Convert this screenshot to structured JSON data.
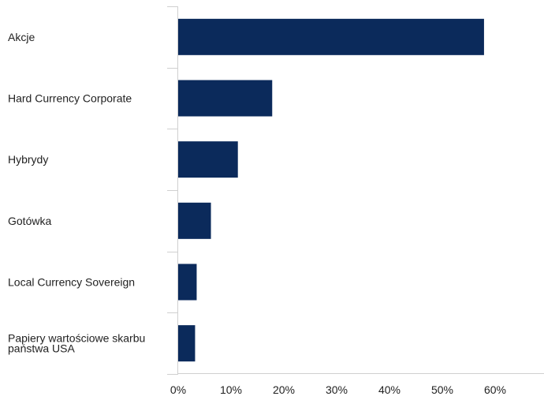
{
  "chart_data": {
    "type": "bar",
    "orientation": "horizontal",
    "title": "",
    "xlabel": "",
    "ylabel": "",
    "categories": [
      "Akcje",
      "Hard Currency Corporate",
      "Hybrydy",
      "Gotówka",
      "Local Currency Sovereign",
      "Papiery wartościowe skarbu państwa USA"
    ],
    "category_lines": [
      [
        "Akcje"
      ],
      [
        "Hard Currency Corporate"
      ],
      [
        "Hybrydy"
      ],
      [
        "Gotówka"
      ],
      [
        "Local Currency Sovereign"
      ],
      [
        "Papiery wartościowe skarbu",
        "państwa USA"
      ]
    ],
    "values": [
      57.9,
      17.8,
      11.3,
      6.2,
      3.5,
      3.2
    ],
    "xlim": [
      0,
      70
    ],
    "tick_values": [
      0,
      10,
      20,
      30,
      40,
      50,
      60
    ],
    "tick_labels": [
      "0%",
      "10%",
      "20%",
      "30%",
      "40%",
      "50%",
      "60%"
    ],
    "grid": false,
    "legend": "none",
    "colors": {
      "bar": "#0b2a5b",
      "axis": "#d0d0d0",
      "text": "#222222"
    }
  }
}
